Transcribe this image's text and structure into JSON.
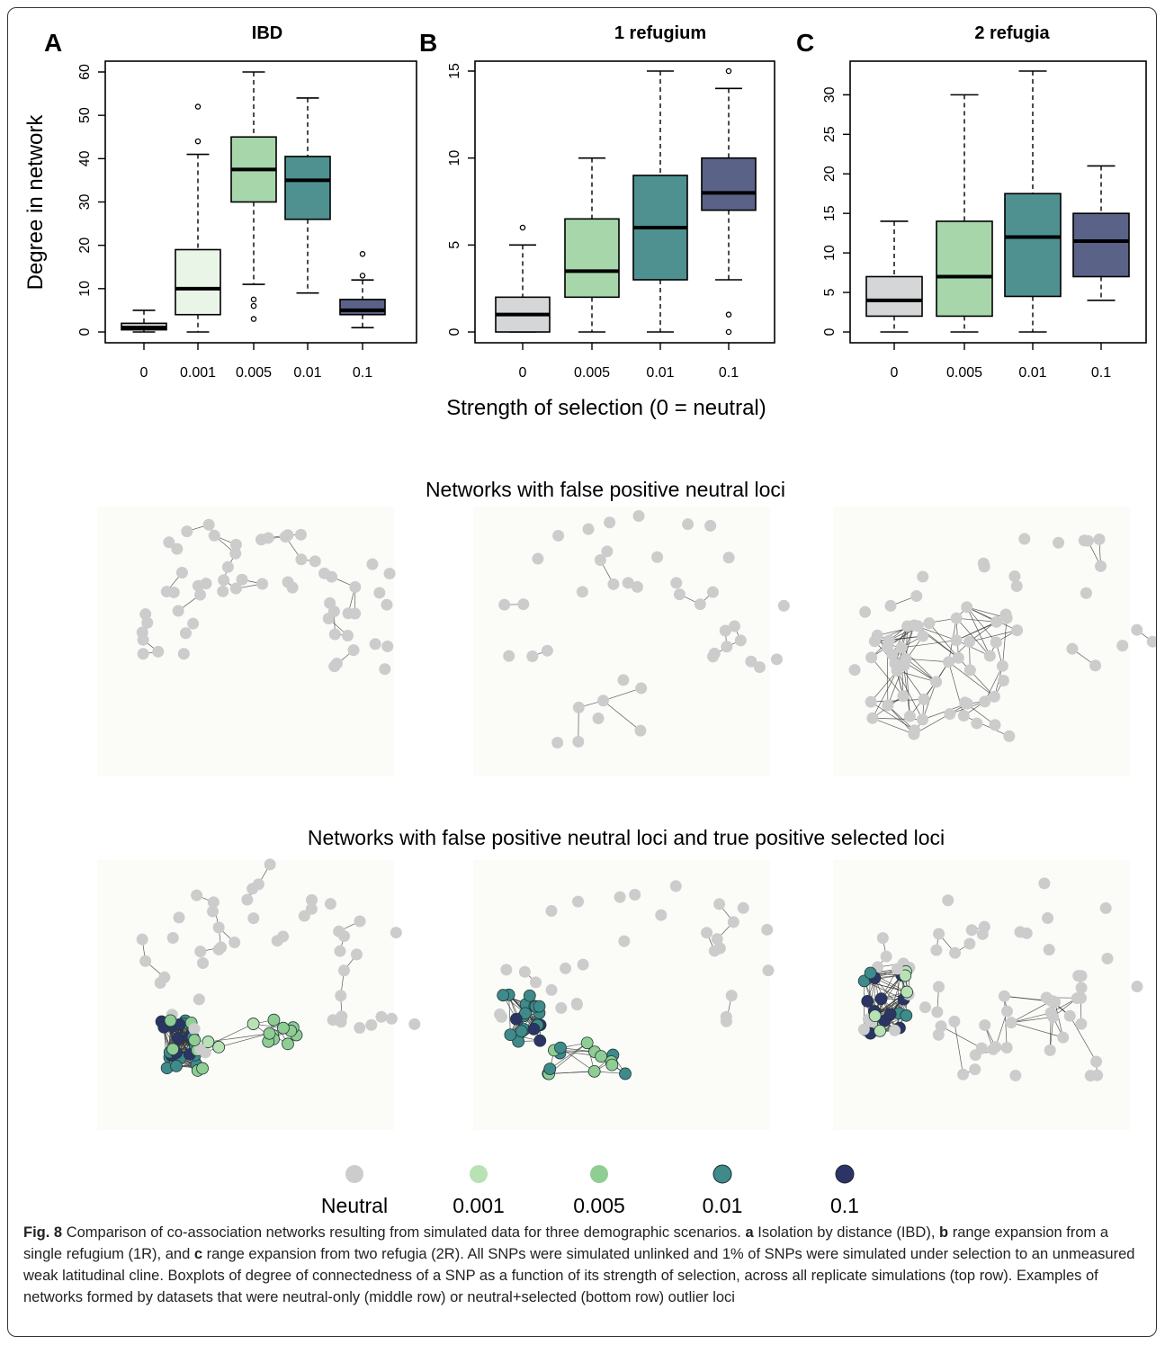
{
  "chart_data": [
    {
      "type": "box",
      "panel_letter": "A",
      "title": "IBD",
      "ylabel": "Degree in network",
      "ylim": [
        0,
        60
      ],
      "yticks": [
        0,
        10,
        20,
        30,
        40,
        50,
        60
      ],
      "categories": [
        "0",
        "0.001",
        "0.005",
        "0.01",
        "0.1"
      ],
      "colors": [
        "#d4d6d7",
        "#e9f5e7",
        "#a7d6ab",
        "#4f9191",
        "#5a6288"
      ],
      "boxes": [
        {
          "whisker_low": 0,
          "q1": 0.5,
          "median": 1,
          "q3": 2,
          "whisker_high": 5,
          "outliers": []
        },
        {
          "whisker_low": 0,
          "q1": 4,
          "median": 10,
          "q3": 19,
          "whisker_high": 41,
          "outliers": [
            44,
            52
          ]
        },
        {
          "whisker_low": 11,
          "q1": 30,
          "median": 37.5,
          "q3": 45,
          "whisker_high": 60,
          "outliers": [
            3,
            6,
            7.5
          ]
        },
        {
          "whisker_low": 9,
          "q1": 26,
          "median": 35,
          "q3": 40.5,
          "whisker_high": 54,
          "outliers": []
        },
        {
          "whisker_low": 1,
          "q1": 4,
          "median": 5,
          "q3": 7.5,
          "whisker_high": 12,
          "outliers": [
            13,
            18
          ]
        }
      ]
    },
    {
      "type": "box",
      "panel_letter": "B",
      "title": "1 refugium",
      "ylabel": "",
      "ylim": [
        0,
        15
      ],
      "yticks": [
        0,
        5,
        10,
        15
      ],
      "categories": [
        "0",
        "0.005",
        "0.01",
        "0.1"
      ],
      "colors": [
        "#d4d6d7",
        "#a7d6ab",
        "#4f9191",
        "#5a6288"
      ],
      "boxes": [
        {
          "whisker_low": 0,
          "q1": 0,
          "median": 1,
          "q3": 2,
          "whisker_high": 5,
          "outliers": [
            6
          ]
        },
        {
          "whisker_low": 0,
          "q1": 2,
          "median": 3.5,
          "q3": 6.5,
          "whisker_high": 10,
          "outliers": []
        },
        {
          "whisker_low": 0,
          "q1": 3,
          "median": 6,
          "q3": 9,
          "whisker_high": 15,
          "outliers": []
        },
        {
          "whisker_low": 3,
          "q1": 7,
          "median": 8,
          "q3": 10,
          "whisker_high": 14,
          "outliers": [
            0,
            1,
            15
          ]
        }
      ]
    },
    {
      "type": "box",
      "panel_letter": "C",
      "title": "2 refugia",
      "ylabel": "",
      "ylim": [
        0,
        33
      ],
      "yticks": [
        0,
        5,
        10,
        15,
        20,
        25,
        30
      ],
      "categories": [
        "0",
        "0.005",
        "0.01",
        "0.1"
      ],
      "colors": [
        "#d4d6d7",
        "#a7d6ab",
        "#4f9191",
        "#5a6288"
      ],
      "boxes": [
        {
          "whisker_low": 0,
          "q1": 2,
          "median": 4,
          "q3": 7,
          "whisker_high": 14,
          "outliers": []
        },
        {
          "whisker_low": 0,
          "q1": 2,
          "median": 7,
          "q3": 14,
          "whisker_high": 30,
          "outliers": []
        },
        {
          "whisker_low": 0,
          "q1": 4.5,
          "median": 12,
          "q3": 17.5,
          "whisker_high": 33,
          "outliers": []
        },
        {
          "whisker_low": 4,
          "q1": 7,
          "median": 11.5,
          "q3": 15,
          "whisker_high": 21,
          "outliers": []
        }
      ]
    }
  ],
  "shared_xlabel": "Strength of selection (0 = neutral)",
  "network_rows": [
    "Networks with false positive neutral loci",
    "Networks with false positive neutral loci and true positive selected loci"
  ],
  "legend": {
    "items": [
      {
        "label": "Neutral",
        "color": "#cccccc"
      },
      {
        "label": "0.001",
        "color": "#b8e2b4"
      },
      {
        "label": "0.005",
        "color": "#8fcd93"
      },
      {
        "label": "0.01",
        "color": "#3f8a8a"
      },
      {
        "label": "0.1",
        "color": "#2c3466"
      }
    ]
  },
  "caption": {
    "fig_label": "Fig. 8",
    "intro": "Comparison of co-association networks resulting from simulated data for three demographic scenarios.",
    "a_letter": "a",
    "a_text": "Isolation by distance (IBD),",
    "b_letter": "b",
    "b_text": "range expansion from a single refugium (1R), and",
    "c_letter": "c",
    "c_text": "range expansion from two refugia (2R). All SNPs were simulated unlinked and 1% of SNPs were simulated under selection to an unmeasured weak latitudinal cline. Boxplots of degree of connectedness of a SNP as a function of its strength of selection, across all replicate simulations (top row). Examples of networks formed by datasets that were neutral-only (middle row) or neutral+selected (bottom row) outlier loci"
  }
}
